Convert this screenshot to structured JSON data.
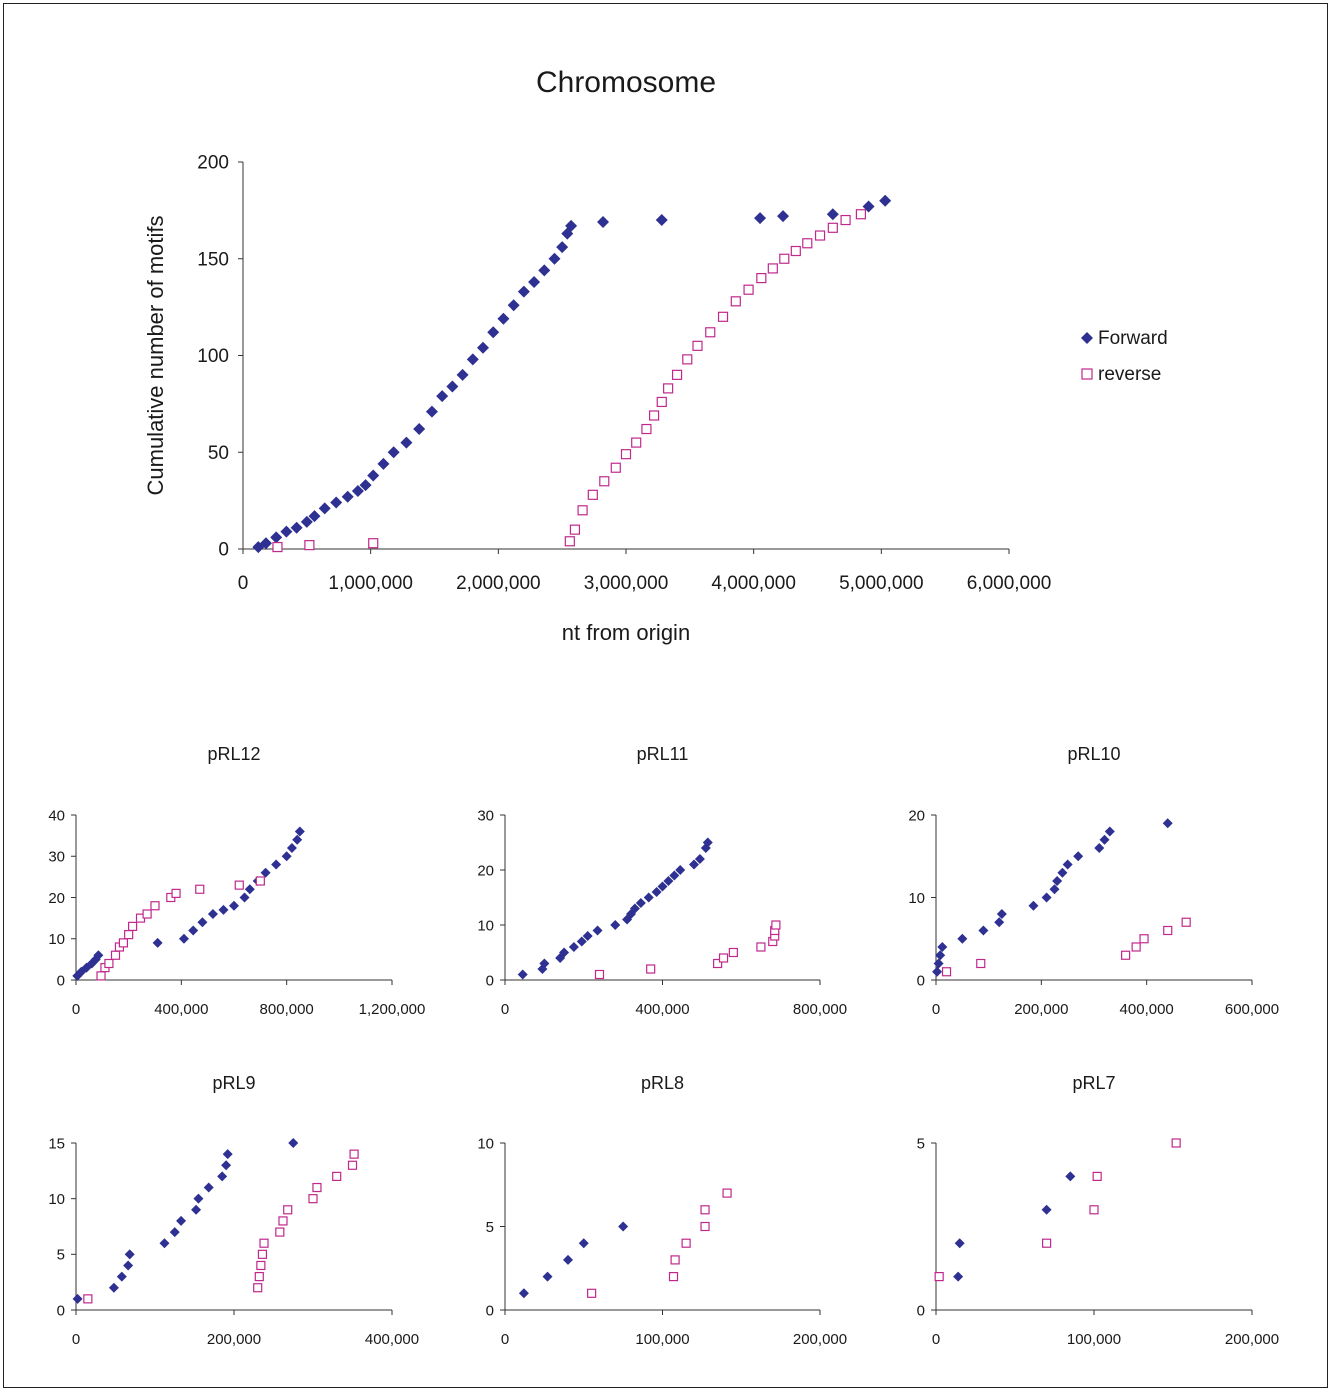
{
  "colors": {
    "forward": "#2e3192",
    "reverse": "#c0288c",
    "axis": "#333333"
  },
  "legend": {
    "forward_label": "Forward",
    "reverse_label": "reverse",
    "position": "right"
  },
  "chart_data": [
    {
      "type": "scatter",
      "title": "Chromosome",
      "xlabel": "nt from origin",
      "ylabel": "Cumulative number of motifs",
      "xlim": [
        0,
        6000000
      ],
      "ylim": [
        0,
        200
      ],
      "xticks": [
        0,
        1000000,
        2000000,
        3000000,
        4000000,
        5000000,
        6000000
      ],
      "xtick_labels": [
        "0",
        "1,000,000",
        "2,000,000",
        "3,000,000",
        "4,000,000",
        "5,000,000",
        "6,000,000"
      ],
      "yticks": [
        0,
        50,
        100,
        150,
        200
      ],
      "ytick_labels": [
        "0",
        "50",
        "100",
        "150",
        "200"
      ],
      "series": [
        {
          "name": "Forward",
          "points": [
            [
              120000,
              1
            ],
            [
              180000,
              3
            ],
            [
              260000,
              6
            ],
            [
              340000,
              9
            ],
            [
              420000,
              11
            ],
            [
              500000,
              14
            ],
            [
              560000,
              17
            ],
            [
              640000,
              21
            ],
            [
              730000,
              24
            ],
            [
              820000,
              27
            ],
            [
              900000,
              30
            ],
            [
              960000,
              33
            ],
            [
              1020000,
              38
            ],
            [
              1100000,
              44
            ],
            [
              1180000,
              50
            ],
            [
              1280000,
              55
            ],
            [
              1380000,
              62
            ],
            [
              1480000,
              71
            ],
            [
              1560000,
              79
            ],
            [
              1640000,
              84
            ],
            [
              1720000,
              90
            ],
            [
              1800000,
              98
            ],
            [
              1880000,
              104
            ],
            [
              1960000,
              112
            ],
            [
              2040000,
              119
            ],
            [
              2120000,
              126
            ],
            [
              2200000,
              133
            ],
            [
              2280000,
              138
            ],
            [
              2360000,
              144
            ],
            [
              2440000,
              150
            ],
            [
              2500000,
              156
            ],
            [
              2540000,
              163
            ],
            [
              2570000,
              167
            ],
            [
              2820000,
              169
            ],
            [
              3280000,
              170
            ],
            [
              4050000,
              171
            ],
            [
              4230000,
              172
            ],
            [
              4620000,
              173
            ],
            [
              4900000,
              177
            ],
            [
              5030000,
              180
            ]
          ]
        },
        {
          "name": "reverse",
          "points": [
            [
              270000,
              1
            ],
            [
              520000,
              2
            ],
            [
              1020000,
              3
            ],
            [
              2560000,
              4
            ],
            [
              2600000,
              10
            ],
            [
              2660000,
              20
            ],
            [
              2740000,
              28
            ],
            [
              2830000,
              35
            ],
            [
              2920000,
              42
            ],
            [
              3000000,
              49
            ],
            [
              3080000,
              55
            ],
            [
              3160000,
              62
            ],
            [
              3220000,
              69
            ],
            [
              3280000,
              76
            ],
            [
              3330000,
              83
            ],
            [
              3400000,
              90
            ],
            [
              3480000,
              98
            ],
            [
              3560000,
              105
            ],
            [
              3660000,
              112
            ],
            [
              3760000,
              120
            ],
            [
              3860000,
              128
            ],
            [
              3960000,
              134
            ],
            [
              4060000,
              140
            ],
            [
              4150000,
              145
            ],
            [
              4240000,
              150
            ],
            [
              4330000,
              154
            ],
            [
              4420000,
              158
            ],
            [
              4520000,
              162
            ],
            [
              4620000,
              166
            ],
            [
              4720000,
              170
            ],
            [
              4840000,
              173
            ]
          ]
        }
      ]
    },
    {
      "type": "scatter",
      "title": "pRL12",
      "xlim": [
        0,
        1200000
      ],
      "ylim": [
        0,
        40
      ],
      "xticks": [
        0,
        400000,
        800000,
        1200000
      ],
      "xtick_labels": [
        "0",
        "400,000",
        "800,000",
        "1,200,000"
      ],
      "yticks": [
        0,
        10,
        20,
        30,
        40
      ],
      "ytick_labels": [
        "0",
        "10",
        "20",
        "30",
        "40"
      ],
      "series": [
        {
          "name": "Forward",
          "points": [
            [
              5000,
              1
            ],
            [
              20000,
              2
            ],
            [
              40000,
              3
            ],
            [
              60000,
              4
            ],
            [
              75000,
              5
            ],
            [
              85000,
              6
            ],
            [
              310000,
              9
            ],
            [
              410000,
              10
            ],
            [
              445000,
              12
            ],
            [
              480000,
              14
            ],
            [
              520000,
              16
            ],
            [
              560000,
              17
            ],
            [
              600000,
              18
            ],
            [
              640000,
              20
            ],
            [
              660000,
              22
            ],
            [
              690000,
              24
            ],
            [
              720000,
              26
            ],
            [
              760000,
              28
            ],
            [
              800000,
              30
            ],
            [
              820000,
              32
            ],
            [
              840000,
              34
            ],
            [
              850000,
              36
            ]
          ]
        },
        {
          "name": "reverse",
          "points": [
            [
              95000,
              1
            ],
            [
              110000,
              3
            ],
            [
              125000,
              4
            ],
            [
              150000,
              6
            ],
            [
              165000,
              8
            ],
            [
              180000,
              9
            ],
            [
              200000,
              11
            ],
            [
              215000,
              13
            ],
            [
              245000,
              15
            ],
            [
              270000,
              16
            ],
            [
              300000,
              18
            ],
            [
              360000,
              20
            ],
            [
              380000,
              21
            ],
            [
              470000,
              22
            ],
            [
              620000,
              23
            ],
            [
              700000,
              24
            ]
          ]
        }
      ]
    },
    {
      "type": "scatter",
      "title": "pRL11",
      "xlim": [
        0,
        800000
      ],
      "ylim": [
        0,
        30
      ],
      "xticks": [
        0,
        400000,
        800000
      ],
      "xtick_labels": [
        "0",
        "400,000",
        "800,000"
      ],
      "yticks": [
        0,
        10,
        20,
        30
      ],
      "ytick_labels": [
        "0",
        "10",
        "20",
        "30"
      ],
      "series": [
        {
          "name": "Forward",
          "points": [
            [
              45000,
              1
            ],
            [
              95000,
              2
            ],
            [
              100000,
              3
            ],
            [
              140000,
              4
            ],
            [
              150000,
              5
            ],
            [
              175000,
              6
            ],
            [
              195000,
              7
            ],
            [
              210000,
              8
            ],
            [
              235000,
              9
            ],
            [
              280000,
              10
            ],
            [
              310000,
              11
            ],
            [
              320000,
              12
            ],
            [
              330000,
              13
            ],
            [
              345000,
              14
            ],
            [
              365000,
              15
            ],
            [
              385000,
              16
            ],
            [
              400000,
              17
            ],
            [
              415000,
              18
            ],
            [
              430000,
              19
            ],
            [
              445000,
              20
            ],
            [
              480000,
              21
            ],
            [
              495000,
              22
            ],
            [
              510000,
              24
            ],
            [
              515000,
              25
            ]
          ]
        },
        {
          "name": "reverse",
          "points": [
            [
              240000,
              1
            ],
            [
              370000,
              2
            ],
            [
              540000,
              3
            ],
            [
              555000,
              4
            ],
            [
              580000,
              5
            ],
            [
              650000,
              6
            ],
            [
              680000,
              7
            ],
            [
              685000,
              8
            ],
            [
              685000,
              9
            ],
            [
              688000,
              10
            ]
          ]
        }
      ]
    },
    {
      "type": "scatter",
      "title": "pRL10",
      "xlim": [
        0,
        600000
      ],
      "ylim": [
        0,
        20
      ],
      "xticks": [
        0,
        200000,
        400000,
        600000
      ],
      "xtick_labels": [
        "0",
        "200,000",
        "400,000",
        "600,000"
      ],
      "yticks": [
        0,
        10,
        20
      ],
      "ytick_labels": [
        "0",
        "10",
        "20"
      ],
      "series": [
        {
          "name": "Forward",
          "points": [
            [
              2000,
              1
            ],
            [
              5000,
              2
            ],
            [
              8000,
              3
            ],
            [
              12000,
              4
            ],
            [
              50000,
              5
            ],
            [
              90000,
              6
            ],
            [
              120000,
              7
            ],
            [
              125000,
              8
            ],
            [
              185000,
              9
            ],
            [
              210000,
              10
            ],
            [
              225000,
              11
            ],
            [
              230000,
              12
            ],
            [
              240000,
              13
            ],
            [
              250000,
              14
            ],
            [
              270000,
              15
            ],
            [
              310000,
              16
            ],
            [
              320000,
              17
            ],
            [
              330000,
              18
            ],
            [
              440000,
              19
            ]
          ]
        },
        {
          "name": "reverse",
          "points": [
            [
              20000,
              1
            ],
            [
              85000,
              2
            ],
            [
              360000,
              3
            ],
            [
              380000,
              4
            ],
            [
              395000,
              5
            ],
            [
              440000,
              6
            ],
            [
              475000,
              7
            ]
          ]
        }
      ]
    },
    {
      "type": "scatter",
      "title": "pRL9",
      "xlim": [
        0,
        400000
      ],
      "ylim": [
        0,
        15
      ],
      "xticks": [
        0,
        200000,
        400000
      ],
      "xtick_labels": [
        "0",
        "200,000",
        "400,000"
      ],
      "yticks": [
        0,
        5,
        10,
        15
      ],
      "ytick_labels": [
        "0",
        "5",
        "10",
        "15"
      ],
      "series": [
        {
          "name": "Forward",
          "points": [
            [
              2000,
              1
            ],
            [
              48000,
              2
            ],
            [
              58000,
              3
            ],
            [
              66000,
              4
            ],
            [
              68000,
              5
            ],
            [
              112000,
              6
            ],
            [
              125000,
              7
            ],
            [
              133000,
              8
            ],
            [
              152000,
              9
            ],
            [
              155000,
              10
            ],
            [
              168000,
              11
            ],
            [
              185000,
              12
            ],
            [
              190000,
              13
            ],
            [
              192000,
              14
            ],
            [
              275000,
              15
            ]
          ]
        },
        {
          "name": "reverse",
          "points": [
            [
              15000,
              1
            ],
            [
              230000,
              2
            ],
            [
              232000,
              3
            ],
            [
              234000,
              4
            ],
            [
              236000,
              5
            ],
            [
              238000,
              6
            ],
            [
              258000,
              7
            ],
            [
              262000,
              8
            ],
            [
              268000,
              9
            ],
            [
              300000,
              10
            ],
            [
              305000,
              11
            ],
            [
              330000,
              12
            ],
            [
              350000,
              13
            ],
            [
              352000,
              14
            ]
          ]
        }
      ]
    },
    {
      "type": "scatter",
      "title": "pRL8",
      "xlim": [
        0,
        200000
      ],
      "ylim": [
        0,
        10
      ],
      "xticks": [
        0,
        100000,
        200000
      ],
      "xtick_labels": [
        "0",
        "100,000",
        "200,000"
      ],
      "yticks": [
        0,
        5,
        10
      ],
      "ytick_labels": [
        "0",
        "5",
        "10"
      ],
      "series": [
        {
          "name": "Forward",
          "points": [
            [
              12000,
              1
            ],
            [
              27000,
              2
            ],
            [
              40000,
              3
            ],
            [
              50000,
              4
            ],
            [
              75000,
              5
            ]
          ]
        },
        {
          "name": "reverse",
          "points": [
            [
              55000,
              1
            ],
            [
              107000,
              2
            ],
            [
              108000,
              3
            ],
            [
              115000,
              4
            ],
            [
              127000,
              5
            ],
            [
              127000,
              6
            ],
            [
              141000,
              7
            ]
          ]
        }
      ]
    },
    {
      "type": "scatter",
      "title": "pRL7",
      "xlim": [
        0,
        200000
      ],
      "ylim": [
        0,
        5
      ],
      "xticks": [
        0,
        100000,
        200000
      ],
      "xtick_labels": [
        "0",
        "100,000",
        "200,000"
      ],
      "yticks": [
        0,
        5
      ],
      "ytick_labels": [
        "0",
        "5"
      ],
      "series": [
        {
          "name": "Forward",
          "points": [
            [
              14000,
              1
            ],
            [
              15000,
              2
            ],
            [
              70000,
              3
            ],
            [
              85000,
              4
            ]
          ]
        },
        {
          "name": "reverse",
          "points": [
            [
              2000,
              1
            ],
            [
              70000,
              2
            ],
            [
              100000,
              3
            ],
            [
              102000,
              4
            ],
            [
              152000,
              5
            ]
          ]
        }
      ]
    }
  ]
}
